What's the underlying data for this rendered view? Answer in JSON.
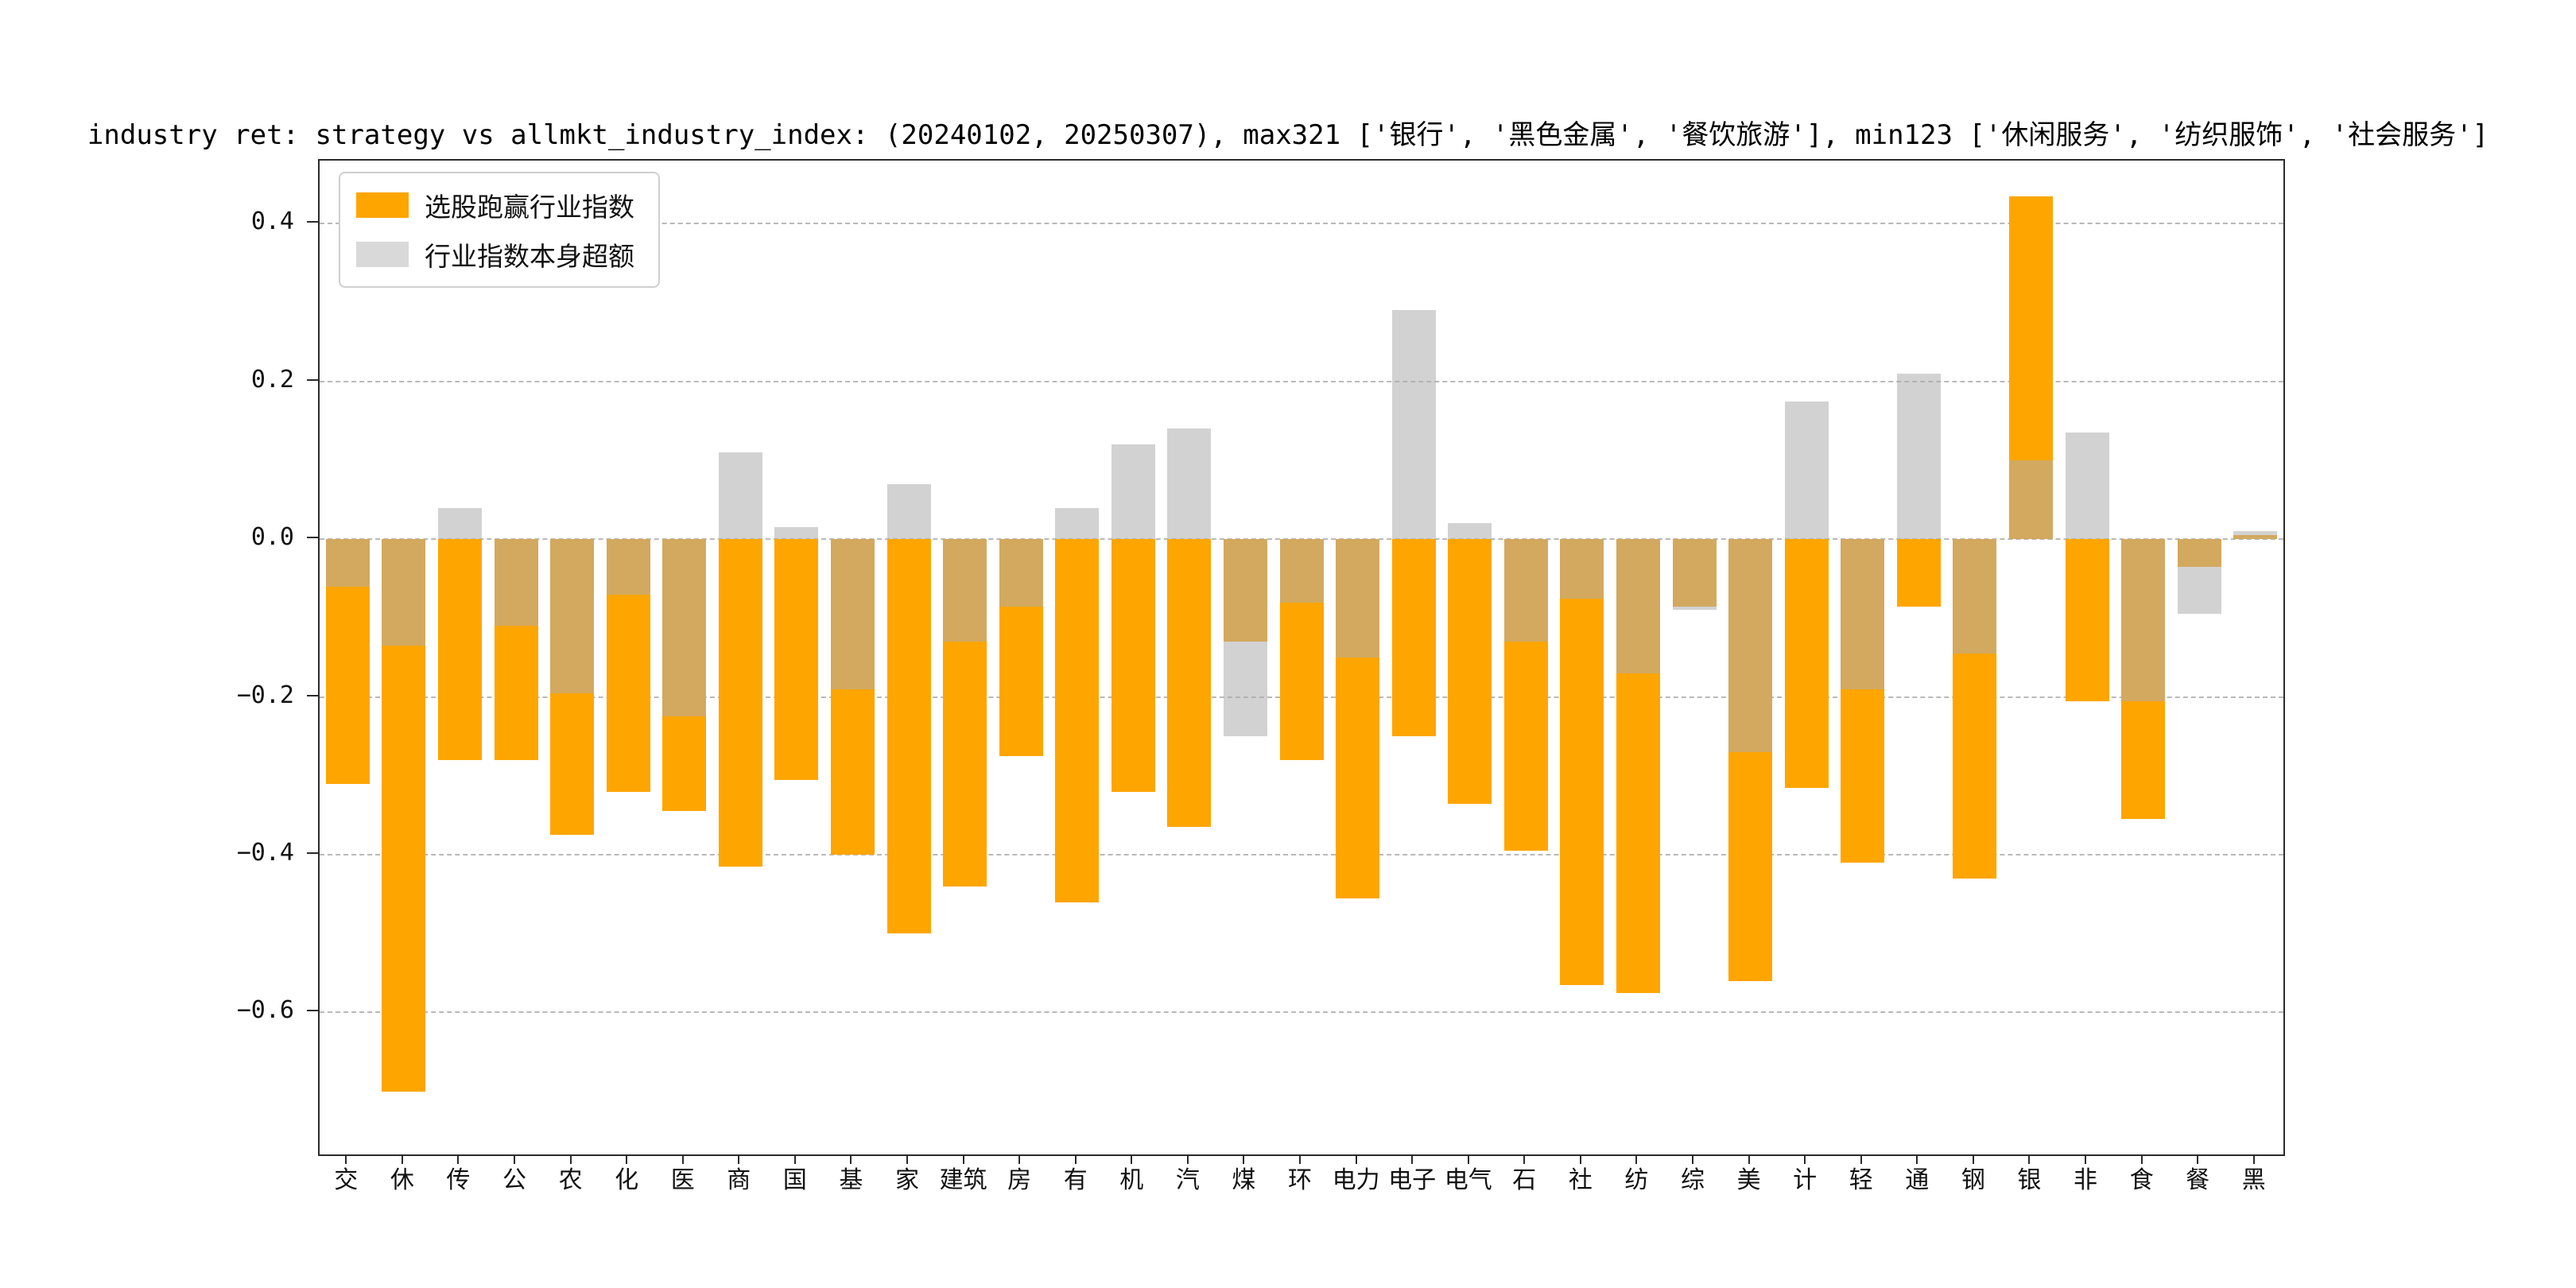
{
  "title": "industry ret: strategy vs allmkt_industry_index: (20240102, 20250307), max321 ['银行', '黑色金属', '餐饮旅游'], min123 ['休闲服务', '纺织服饰', '社会服务']",
  "legend": {
    "items": [
      {
        "label": "选股跑赢行业指数",
        "color": "#FFA500"
      },
      {
        "label": "行业指数本身超额",
        "color": "#D9D9D9"
      }
    ]
  },
  "axes": {
    "y_tick_labels": [
      "0.4",
      "0.2",
      "0.0",
      "−0.2",
      "−0.4",
      "−0.6"
    ],
    "y_tick_values": [
      0.4,
      0.2,
      0.0,
      -0.2,
      -0.4,
      -0.6
    ],
    "y_min": -0.78,
    "y_max": 0.48
  },
  "chart_data": {
    "type": "bar",
    "title": "industry ret: strategy vs allmkt_industry_index: (20240102, 20250307), max321 ['银行', '黑色金属', '餐饮旅游'], min123 ['休闲服务', '纺织服饰', '社会服务']",
    "categories": [
      "交",
      "休",
      "传",
      "公",
      "农",
      "化",
      "医",
      "商",
      "国",
      "基",
      "家",
      "建筑",
      "房",
      "有",
      "机",
      "汽",
      "煤",
      "环",
      "电力",
      "电子",
      "电气",
      "石",
      "社",
      "纺",
      "综",
      "美",
      "计",
      "轻",
      "通",
      "钢",
      "银",
      "非",
      "食",
      "餐",
      "黑"
    ],
    "series": [
      {
        "name": "选股跑赢行业指数",
        "color": "#FFA500",
        "values": [
          -0.31,
          -0.7,
          -0.28,
          -0.28,
          -0.375,
          -0.32,
          -0.345,
          -0.415,
          -0.305,
          -0.4,
          -0.5,
          -0.44,
          -0.275,
          -0.46,
          -0.32,
          -0.365,
          -0.13,
          -0.28,
          -0.455,
          -0.25,
          -0.335,
          -0.395,
          -0.565,
          -0.575,
          -0.085,
          -0.56,
          -0.315,
          -0.41,
          -0.085,
          -0.43,
          0.435,
          -0.205,
          -0.355,
          -0.035,
          0.005
        ]
      },
      {
        "name": "行业指数本身超额",
        "color": "#D3D3D3",
        "values": [
          -0.06,
          -0.135,
          0.04,
          -0.11,
          -0.195,
          -0.07,
          -0.225,
          0.11,
          0.015,
          -0.19,
          0.07,
          -0.13,
          -0.085,
          0.04,
          0.12,
          0.14,
          -0.25,
          -0.08,
          -0.15,
          0.29,
          0.02,
          -0.13,
          -0.075,
          -0.17,
          -0.09,
          -0.27,
          0.175,
          -0.19,
          0.21,
          -0.145,
          0.1,
          0.135,
          -0.205,
          -0.095,
          0.01
        ]
      }
    ],
    "ylim": [
      -0.78,
      0.48
    ],
    "xlabel": "",
    "ylabel": "",
    "grid": "dashed-horizontal",
    "legend_position": "upper-left",
    "bars_overlap": true
  }
}
